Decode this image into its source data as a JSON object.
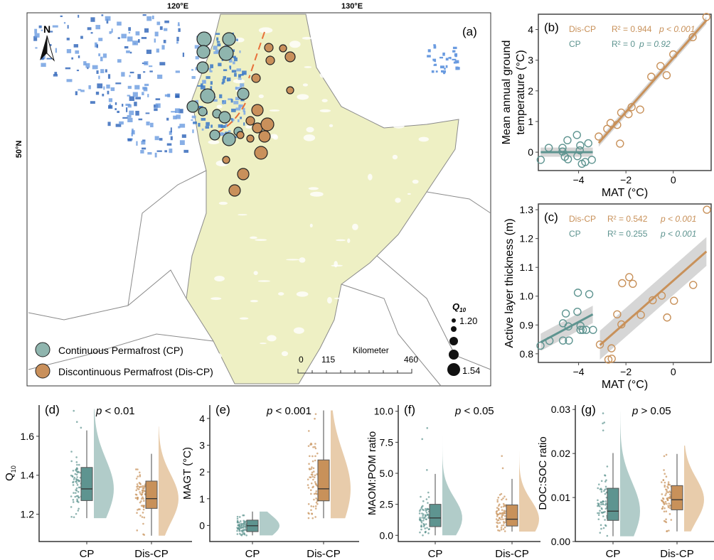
{
  "colors": {
    "cp": "#5e9490",
    "cp_light": "#a9c6c3",
    "dis": "#c8915a",
    "dis_light": "#e6c6a2",
    "land": "#eef0c4",
    "permafrost_blue": "#3a78c8",
    "boundary": "#8a8a8a",
    "permafrost_line": "#e8703a"
  },
  "map": {
    "panel_label": "(a)",
    "lon_labels": [
      "120°E",
      "130°E"
    ],
    "lat_labels": [
      "50°N"
    ],
    "north_label": "N",
    "legend": {
      "cp": "Continuous Permafrost (CP)",
      "dis": "Discontinuous Permafrost (Dis-CP)"
    },
    "size_legend": {
      "title": "Q",
      "title_sub": "10",
      "min_label": "1.20",
      "max_label": "1.54",
      "levels": 5
    },
    "scale_bar": {
      "unit": "Kilometer",
      "labels": [
        "0",
        "115",
        "460"
      ]
    },
    "icons": [
      "north-arrow-icon"
    ]
  },
  "chart_data": [
    {
      "type": "scatter",
      "panel": "(b)",
      "xlabel": "MAT (°C)",
      "ylabel": [
        "Mean annual ground",
        "temperature (°C)"
      ],
      "xlim": [
        -5.7,
        1.6
      ],
      "ylim": [
        -0.6,
        4.5
      ],
      "xticks": [
        -4,
        -2,
        0
      ],
      "yticks": [
        0,
        1,
        2,
        3,
        4
      ],
      "annotations": [
        {
          "group": "Dis-CP",
          "r2": "R² = 0.944",
          "p": "p < 0.001"
        },
        {
          "group": "CP",
          "r2": "R² = 0",
          "p": "p = 0.92"
        }
      ],
      "series": [
        {
          "name": "CP",
          "x": [
            -5.6,
            -5.26,
            -4.68,
            -4.47,
            -4.07,
            -3.93,
            -3.59,
            -4.68,
            -4.58,
            -4.45,
            -4.05,
            -3.95,
            -3.86,
            -3.72,
            -3.44
          ],
          "y": [
            -0.25,
            0.14,
            0.14,
            0.39,
            0.56,
            0.22,
            0.29,
            0.02,
            -0.15,
            -0.23,
            -0.13,
            0.06,
            -0.38,
            -0.32,
            -0.25
          ],
          "fit": [
            [
              -5.6,
              0.0
            ],
            [
              -3.4,
              0.0
            ]
          ]
        },
        {
          "name": "Dis-CP",
          "x": [
            -3.15,
            -2.79,
            -2.65,
            -2.37,
            -2.25,
            -2.2,
            -1.89,
            -1.76,
            -1.4,
            -0.93,
            -0.54,
            -0.28,
            0.0,
            0.82,
            1.4
          ],
          "y": [
            0.51,
            0.76,
            0.95,
            0.89,
            0.28,
            1.29,
            1.24,
            1.47,
            1.39,
            2.46,
            2.81,
            2.51,
            3.19,
            3.75,
            4.41
          ],
          "fit": [
            [
              -3.15,
              0.3
            ],
            [
              1.4,
              4.3
            ]
          ]
        }
      ]
    },
    {
      "type": "scatter",
      "panel": "(c)",
      "xlabel": "MAT (°C)",
      "ylabel": [
        "Active layer thickness (m)"
      ],
      "xlim": [
        -5.7,
        1.6
      ],
      "ylim": [
        0.77,
        1.32
      ],
      "xticks": [
        -4,
        -2,
        0
      ],
      "yticks": [
        0.8,
        0.9,
        1.0,
        1.1,
        1.2,
        1.3
      ],
      "annotations": [
        {
          "group": "Dis-CP",
          "r2": "R² = 0.542",
          "p": "p < 0.001"
        },
        {
          "group": "CP",
          "r2": "R² = 0.255",
          "p": "p < 0.001"
        }
      ],
      "series": [
        {
          "name": "CP",
          "x": [
            -5.61,
            -5.23,
            -4.66,
            -4.41,
            -4.66,
            -4.54,
            -4.43,
            -4.05,
            -4.03,
            -3.92,
            -3.92,
            -3.82,
            -3.68,
            -3.55,
            -3.39
          ],
          "y": [
            0.828,
            0.845,
            0.846,
            0.846,
            0.906,
            0.94,
            0.895,
            0.946,
            1.012,
            0.897,
            0.883,
            0.883,
            0.883,
            1.007,
            0.883
          ],
          "fit": [
            [
              -5.6,
              0.84
            ],
            [
              -3.4,
              0.937
            ]
          ]
        },
        {
          "name": "Dis-CP",
          "x": [
            -3.1,
            -2.74,
            -2.6,
            -2.61,
            -2.37,
            -2.19,
            -2.16,
            -1.86,
            -1.71,
            -1.37,
            -0.87,
            -0.49,
            -0.26,
            0.03,
            0.84,
            1.42
          ],
          "y": [
            0.832,
            0.78,
            0.783,
            0.819,
            0.937,
            0.902,
            1.045,
            1.066,
            1.043,
            0.935,
            0.986,
            1.002,
            0.926,
            0.984,
            1.039,
            1.3
          ],
          "fit": [
            [
              -3.1,
              0.83
            ],
            [
              1.4,
              1.155
            ]
          ]
        }
      ]
    },
    {
      "type": "box",
      "panel": "(d)",
      "ylabel": "Q",
      "ylabel_sub": "10",
      "p": "p < 0.01",
      "categories": [
        "CP",
        "Dis-CP"
      ],
      "ylim": [
        1.06,
        1.76
      ],
      "yticks": [
        "1.2",
        "1.4",
        "1.6"
      ],
      "boxes": [
        {
          "min": 1.18,
          "q1": 1.27,
          "median": 1.33,
          "q3": 1.44,
          "max": 1.63,
          "lo": 1.18,
          "hi": 1.74
        },
        {
          "min": 1.09,
          "q1": 1.23,
          "median": 1.28,
          "q3": 1.37,
          "max": 1.51,
          "lo": 1.09,
          "hi": 1.65
        }
      ]
    },
    {
      "type": "box",
      "panel": "(e)",
      "ylabel": "MAGT (°C)",
      "p": "p < 0.001",
      "categories": [
        "CP",
        "Dis-CP"
      ],
      "ylim": [
        -0.6,
        4.5
      ],
      "yticks": [
        "0",
        "1",
        "2",
        "3",
        "4"
      ],
      "boxes": [
        {
          "min": -0.37,
          "q1": -0.23,
          "median": -0.01,
          "q3": 0.2,
          "max": 0.52,
          "lo": -0.37,
          "hi": 0.52
        },
        {
          "min": 0.27,
          "q1": 0.92,
          "median": 1.37,
          "q3": 2.45,
          "max": 4.3,
          "lo": 0.27,
          "hi": 4.3
        }
      ]
    },
    {
      "type": "box",
      "panel": "(f)",
      "ylabel": "MAOM:POM ratio",
      "p": "p < 0.05",
      "categories": [
        "CP",
        "Dis-CP"
      ],
      "ylim": [
        -0.5,
        10.5
      ],
      "yticks": [
        "0.0",
        "2.5",
        "5.0",
        "7.5",
        "10.0"
      ],
      "boxes": [
        {
          "min": 0.0,
          "q1": 0.7,
          "median": 1.4,
          "q3": 2.5,
          "max": 4.95,
          "lo": 0.0,
          "hi": 9.6
        },
        {
          "min": 0.3,
          "q1": 0.75,
          "median": 1.3,
          "q3": 2.45,
          "max": 4.55,
          "lo": 0.3,
          "hi": 6.8
        }
      ]
    },
    {
      "type": "box",
      "panel": "(g)",
      "ylabel": "DOC:SOC ratio",
      "p": "p > 0.05",
      "categories": [
        "CP",
        "Dis-CP"
      ],
      "ylim": [
        0.0,
        0.031
      ],
      "yticks": [
        "0.00",
        "0.01",
        "0.02",
        "0.03"
      ],
      "boxes": [
        {
          "min": 0.0012,
          "q1": 0.0048,
          "median": 0.0069,
          "q3": 0.0121,
          "max": 0.0201,
          "lo": 0.0012,
          "hi": 0.0295
        },
        {
          "min": 0.0023,
          "q1": 0.0072,
          "median": 0.0095,
          "q3": 0.0127,
          "max": 0.0199,
          "lo": 0.0023,
          "hi": 0.0218
        }
      ]
    }
  ]
}
